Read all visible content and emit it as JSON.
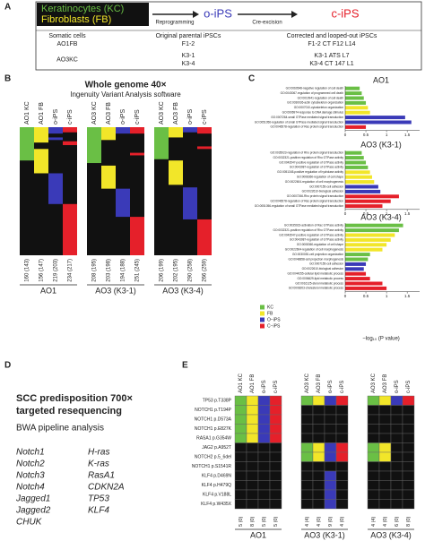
{
  "panel_a": {
    "label": "A",
    "kc": "Keratinocytes (KC)",
    "fb": "Fibroblasts (FB)",
    "reprogramming": "Reprogramming",
    "oips": "o-iPS",
    "cre": "Cre-excision",
    "cips": "c-iPS",
    "headers": [
      "Somatic cells",
      "Original parental iPSCs",
      "Corrected and looped-out iPSCs"
    ],
    "rows": [
      {
        "somatic": "AO1FB",
        "parental": [
          "F1-2"
        ],
        "corrected": [
          "F1-2 CT F12 L14"
        ]
      },
      {
        "somatic": "AO3KC",
        "parental": [
          "K3-1",
          "K3-4"
        ],
        "corrected": [
          "K3-1 ATS L7",
          "K3-4 CT 147 L1"
        ]
      }
    ]
  },
  "panel_b": {
    "label": "B",
    "title": "Whole genome 40×",
    "subtitle": "Ingenuity Variant Analysis software",
    "groups": [
      {
        "name": "AO1",
        "columns": [
          "AO1 KC",
          "AO1 FB",
          "o-iPS",
          "c-iPS"
        ],
        "counts": [
          "160 (143)",
          "156 (147)",
          "219 (203)",
          "234 (217)"
        ]
      },
      {
        "name": "AO3 (K3-1)",
        "columns": [
          "AO3 KC",
          "AO3 FB",
          "o-iPS",
          "c-iPS"
        ],
        "counts": [
          "208 (195)",
          "203 (198)",
          "194 (188)",
          "251 (245)"
        ]
      },
      {
        "name": "AO3 (K3-4)",
        "columns": [
          "AO3 KC",
          "AO3 FB",
          "o-iPS",
          "c-iPS"
        ],
        "counts": [
          "206 (199)",
          "202 (195)",
          "290 (258)",
          "266 (259)"
        ]
      }
    ]
  },
  "panel_c": {
    "label": "C",
    "xlim": [
      0,
      1.8
    ],
    "xticks": [
      0,
      0.5,
      1,
      1.5
    ],
    "xlabel": "−log₁₀ (P value)",
    "legend": [
      {
        "name": "KC",
        "color": "#6abf45"
      },
      {
        "name": "FB",
        "color": "#f2e629"
      },
      {
        "name": "O−iPS",
        "color": "#3a3ab8"
      },
      {
        "name": "C−iPS",
        "color": "#e5202a"
      }
    ],
    "charts": [
      {
        "title": "AO1",
        "terms": [
          "GO:0060548-negative regulation of cell death",
          "GO:0043067-regulation of programmed cell death",
          "GO:0010941-regulation of cell death",
          "GO:0030036-actin cytoskeleton organization",
          "GO:0007010-cytoskeleton organization",
          "GO:0006974-response to DNA damage stimulus",
          "GO:0007264-small GTPase mediated signal transduction",
          "GO:0051056-regulation of small GTPase mediated signal transduction",
          "GO:0046578-regulation of Ras protein signal transduction"
        ],
        "values": [
          0.35,
          0.4,
          0.45,
          0.5,
          0.55,
          0.6,
          1.45,
          1.6,
          0.5
        ],
        "colors": [
          "#6abf45",
          "#6abf45",
          "#6abf45",
          "#6abf45",
          "#f2e629",
          "#f2e629",
          "#3a3ab8",
          "#3a3ab8",
          "#e5202a"
        ]
      },
      {
        "title": "AO3 (K3-1)",
        "terms": [
          "GO:0035023-regulation of Rho protein signal transduction",
          "GO:0032321-positive regulation of Rho GTPase activity",
          "GO:0043547-positive regulation of GTPase activity",
          "GO:0043087-regulation of GTPase activity",
          "GO:0051345-positive regulation of hydrolase activity",
          "GO:0008360-regulation of cell shape",
          "GO:0022604-regulation of cell morphogenesis",
          "GO:0007155-cell adhesion",
          "GO:0022610-biological adhesion",
          "GO:0007266-Rho protein signal transduction",
          "GO:0046578-regulation of Ras protein signal transduction",
          "GO:0051056-regulation of small GTPase mediated signal transduction"
        ],
        "values": [
          0.4,
          0.45,
          0.5,
          0.55,
          0.6,
          0.65,
          0.7,
          0.8,
          0.85,
          1.3,
          1.1,
          0.9
        ],
        "colors": [
          "#6abf45",
          "#6abf45",
          "#6abf45",
          "#6abf45",
          "#f2e629",
          "#f2e629",
          "#f2e629",
          "#3a3ab8",
          "#3a3ab8",
          "#e5202a",
          "#e5202a",
          "#e5202a"
        ]
      },
      {
        "title": "AO3 (K3-4)",
        "terms": [
          "GO:0035023-activation of Rac GTPase activity",
          "GO:0032321-positive regulation of Rho GTPase activity",
          "GO:0043547-positive regulation of GTPase activity",
          "GO:0043087-regulation of GTPase activity",
          "GO:0008360-regulation of cell shape",
          "GO:0022604-regulation of cell morphogenesis",
          "GO:0030030-cell projection organization",
          "GO:0048858-cell projection morphogenesis",
          "GO:0007155-cell adhesion",
          "GO:0022610-biological adhesion",
          "GO:0044255-cellular lipid metabolic process",
          "GO:0006629-lipid metabolic process",
          "GO:0016125-sterol metabolic process",
          "GO:0008203-cholesterol metabolic process"
        ],
        "values": [
          1.4,
          1.3,
          1.2,
          1.1,
          1.0,
          0.9,
          0.6,
          0.55,
          0.5,
          0.45,
          0.5,
          0.6,
          0.9,
          1.0
        ],
        "colors": [
          "#6abf45",
          "#6abf45",
          "#f2e629",
          "#f2e629",
          "#f2e629",
          "#f2e629",
          "#6abf45",
          "#6abf45",
          "#3a3ab8",
          "#3a3ab8",
          "#e5202a",
          "#e5202a",
          "#e5202a",
          "#e5202a"
        ]
      }
    ]
  },
  "panel_d": {
    "label": "D",
    "title": [
      "SCC predisposition 700×",
      "targeted resequencing"
    ],
    "subtitle": "BWA pipeline analysis",
    "genes_left": [
      "Notch1",
      "Notch2",
      "Notch3",
      "Notch4",
      "Jagged1",
      "Jagged2",
      "CHUK"
    ],
    "genes_right": [
      "H-ras",
      "K-ras",
      "RasA1",
      "CDKN2A",
      "TP53",
      "KLF4"
    ]
  },
  "panel_e": {
    "label": "E",
    "rows": [
      "TP53 p.T338P",
      "NOTCH1 p.T194P",
      "NOTCH1 p.D573A",
      "NOTCH1 p.E827K",
      "RASA1 p.G354W",
      "JAG2 p.A952T",
      "NOTCH2 p.5_6del",
      "NOTCH1 p.S1541R",
      "KLF4 p.D469N",
      "KLF4 p.H479Q",
      "KLF4 p.V188L",
      "KLF4 p.W435X"
    ],
    "groups": [
      {
        "name": "AO1",
        "columns": [
          "AO1 KC",
          "AO1 FB",
          "o-iPS",
          "c-iPS"
        ],
        "counts": [
          "5 (0)",
          "8 (0)",
          "5 (0)",
          "5 (0)"
        ]
      },
      {
        "name": "AO3 (K3-1)",
        "columns": [
          "AO3 KC",
          "AO3 FB",
          "o-iPS",
          "c-iPS"
        ],
        "counts": [
          "4 (4)",
          "4 (0)",
          "9 (0)",
          "4 (0)"
        ]
      },
      {
        "name": "AO3 (K3-4)",
        "columns": [
          "AO3 KC",
          "AO3 FB",
          "o-iPS",
          "c-iPS"
        ],
        "counts": [
          "4 (4)",
          "4 (0)",
          "6 (0)",
          "8 (0)"
        ]
      }
    ]
  }
}
